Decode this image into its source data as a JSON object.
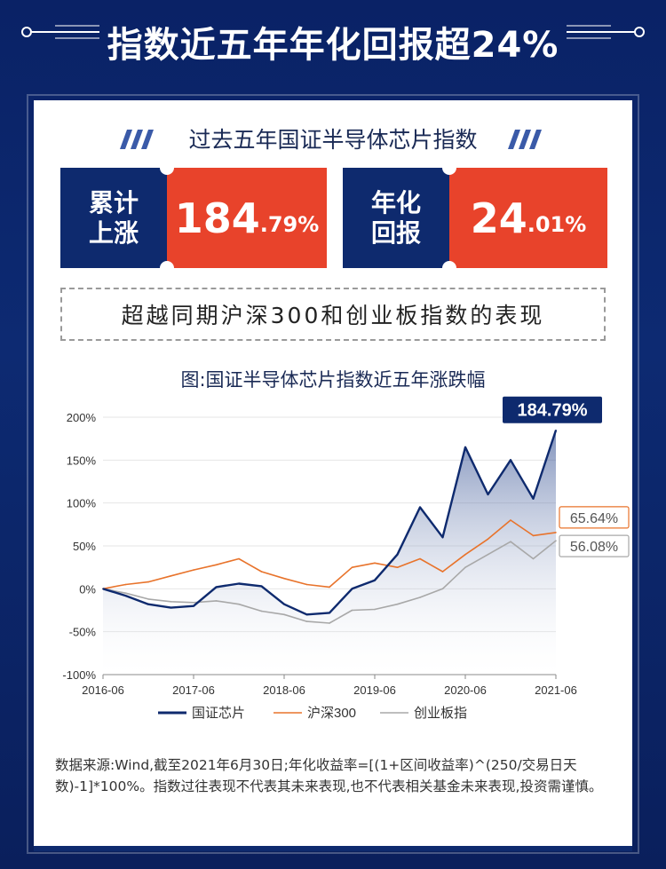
{
  "header": {
    "headline": "指数近五年年化回报超24%"
  },
  "panel": {
    "subtitle": "过去五年国证半导体芯片指数",
    "stats": [
      {
        "label_line1": "累计",
        "label_line2": "上涨",
        "value_big": "184",
        "value_small": ".79%"
      },
      {
        "label_line1": "年化",
        "label_line2": "回报",
        "value_big": "24",
        "value_small": ".01%"
      }
    ],
    "surpass_text": "超越同期沪深300和创业板指数的表现",
    "chart_title": "图:国证半导体芯片指数近五年涨跌幅",
    "footnote": "数据来源:Wind,截至2021年6月30日;年化收益率=[(1+区间收益率)^(250/交易日天数)-1]*100%。指数过往表现不代表其未来表现,也不代表相关基金未来表现,投资需谨慎。"
  },
  "colors": {
    "navy": "#0e2a6e",
    "red": "#e8432b",
    "orange": "#e8732b",
    "gray": "#a8a8a8"
  },
  "chart_data": {
    "type": "line",
    "x": [
      "2016-06",
      "2016-09",
      "2016-12",
      "2017-03",
      "2017-06",
      "2017-09",
      "2017-12",
      "2018-03",
      "2018-06",
      "2018-09",
      "2018-12",
      "2019-03",
      "2019-06",
      "2019-09",
      "2019-12",
      "2020-03",
      "2020-06",
      "2020-09",
      "2020-12",
      "2021-03",
      "2021-06"
    ],
    "x_ticks": [
      "2016-06",
      "2017-06",
      "2018-06",
      "2019-06",
      "2020-06",
      "2021-06"
    ],
    "y_ticks": [
      "200%",
      "150%",
      "100%",
      "50%",
      "0%",
      "-50%",
      "-100%"
    ],
    "ylim": [
      -100,
      200
    ],
    "unit": "%",
    "series": [
      {
        "name": "国证芯片",
        "color": "#0e2a6e",
        "values": [
          0,
          -8,
          -18,
          -22,
          -20,
          2,
          6,
          3,
          -18,
          -30,
          -28,
          0,
          10,
          40,
          95,
          60,
          165,
          110,
          150,
          105,
          184.79
        ],
        "end_label": "184.79%"
      },
      {
        "name": "沪深300",
        "color": "#e8732b",
        "values": [
          0,
          5,
          8,
          15,
          22,
          28,
          35,
          20,
          12,
          5,
          2,
          25,
          30,
          25,
          35,
          20,
          40,
          58,
          80,
          62,
          65.64
        ],
        "end_label": "65.64%"
      },
      {
        "name": "创业板指",
        "color": "#a8a8a8",
        "values": [
          0,
          -5,
          -12,
          -15,
          -16,
          -14,
          -18,
          -26,
          -30,
          -38,
          -40,
          -25,
          -24,
          -18,
          -10,
          0,
          25,
          40,
          55,
          35,
          56.08
        ],
        "end_label": "56.08%"
      }
    ]
  }
}
